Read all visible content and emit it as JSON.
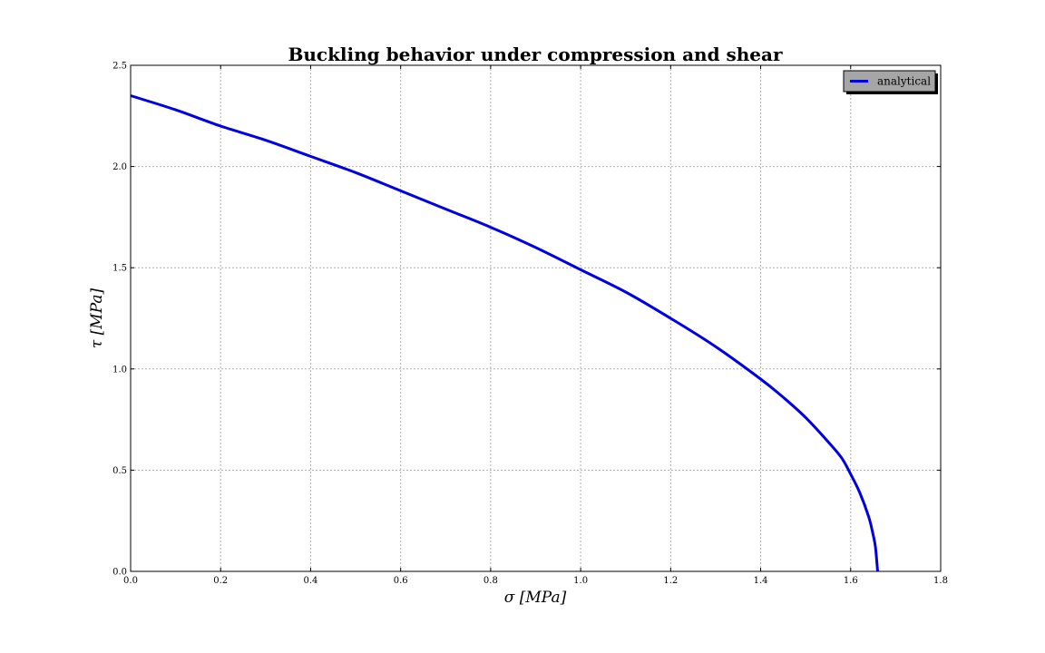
{
  "chart_data": {
    "type": "line",
    "title": "Buckling behavior under compression and shear",
    "xlabel": "σ [MPa]",
    "ylabel": "τ [MPa]",
    "xlim": [
      0.0,
      1.8
    ],
    "ylim": [
      0.0,
      2.5
    ],
    "xticks": [
      "0.0",
      "0.2",
      "0.4",
      "0.6",
      "0.8",
      "1.0",
      "1.2",
      "1.4",
      "1.6",
      "1.8"
    ],
    "yticks": [
      "0.0",
      "0.5",
      "1.0",
      "1.5",
      "2.0",
      "2.5"
    ],
    "grid": true,
    "legend_position": "top-right",
    "series": [
      {
        "name": "analytical",
        "color": "#0000dd",
        "x": [
          0.0,
          0.1,
          0.2,
          0.3,
          0.4,
          0.5,
          0.6,
          0.7,
          0.8,
          0.9,
          1.0,
          1.1,
          1.2,
          1.3,
          1.4,
          1.45,
          1.5,
          1.55,
          1.58,
          1.6,
          1.62,
          1.64,
          1.65,
          1.655,
          1.66
        ],
        "y": [
          2.35,
          2.28,
          2.2,
          2.13,
          2.05,
          1.97,
          1.88,
          1.79,
          1.7,
          1.6,
          1.49,
          1.38,
          1.25,
          1.11,
          0.95,
          0.86,
          0.76,
          0.64,
          0.56,
          0.48,
          0.39,
          0.27,
          0.18,
          0.12,
          0.0
        ]
      }
    ]
  }
}
